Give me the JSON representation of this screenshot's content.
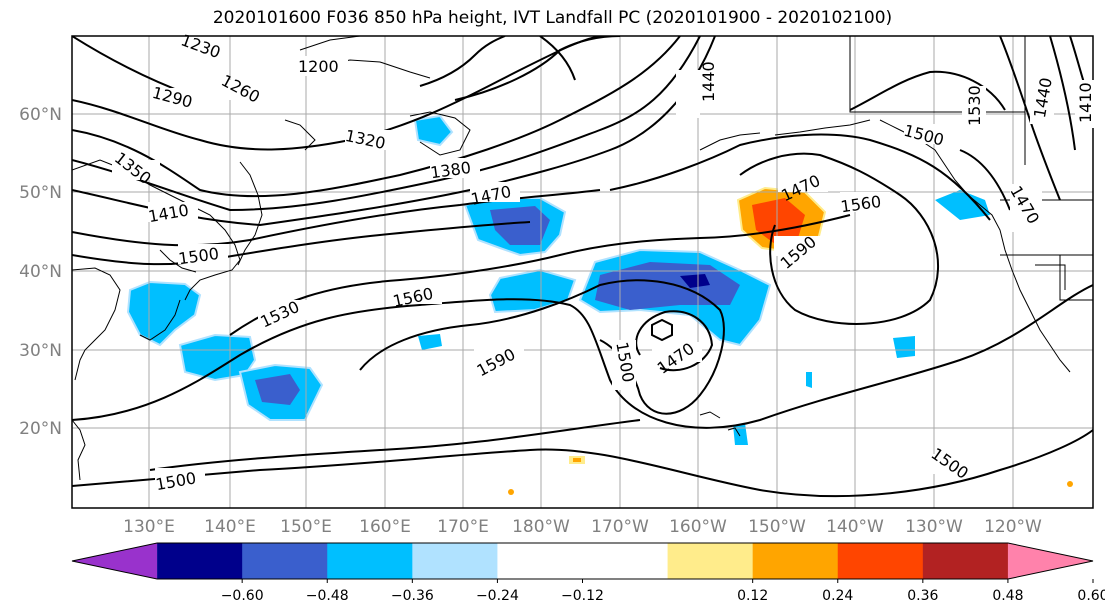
{
  "title": "2020101600 F036 850 hPa height, IVT Landfall PC (2020101900 - 2020102100)",
  "map": {
    "lat_labels": [
      "60°N",
      "50°N",
      "40°N",
      "30°N",
      "20°N"
    ],
    "lon_labels": [
      "130°E",
      "140°E",
      "150°E",
      "160°E",
      "170°E",
      "180°W",
      "170°W",
      "160°W",
      "150°W",
      "140°W",
      "130°W",
      "120°W"
    ],
    "contour_labels": [
      {
        "text": "1230"
      },
      {
        "text": "1200"
      },
      {
        "text": "1260"
      },
      {
        "text": "1290"
      },
      {
        "text": "1320"
      },
      {
        "text": "1350"
      },
      {
        "text": "1380"
      },
      {
        "text": "1410"
      },
      {
        "text": "1440"
      },
      {
        "text": "1470"
      },
      {
        "text": "1500"
      },
      {
        "text": "1530"
      },
      {
        "text": "1560"
      },
      {
        "text": "1590"
      },
      {
        "text": "1500"
      },
      {
        "text": "1470"
      },
      {
        "text": "1470"
      },
      {
        "text": "1560"
      },
      {
        "text": "1590"
      },
      {
        "text": "1500"
      },
      {
        "text": "1530"
      },
      {
        "text": "1470"
      },
      {
        "text": "1440"
      },
      {
        "text": "1410"
      },
      {
        "text": "1500"
      },
      {
        "text": "1500"
      }
    ]
  },
  "colorbar": {
    "colors": [
      "#9932cc",
      "#00008b",
      "#3a5fcd",
      "#00bfff",
      "#b0e2ff",
      "#ffffff",
      "#ffffff",
      "#ffec8b",
      "#ffa500",
      "#ff4500",
      "#b22222",
      "#ff82ab"
    ],
    "ticks": [
      "−0.60",
      "−0.48",
      "−0.36",
      "−0.24",
      "−0.12",
      "0.12",
      "0.24",
      "0.36",
      "0.48",
      "0.60"
    ]
  }
}
